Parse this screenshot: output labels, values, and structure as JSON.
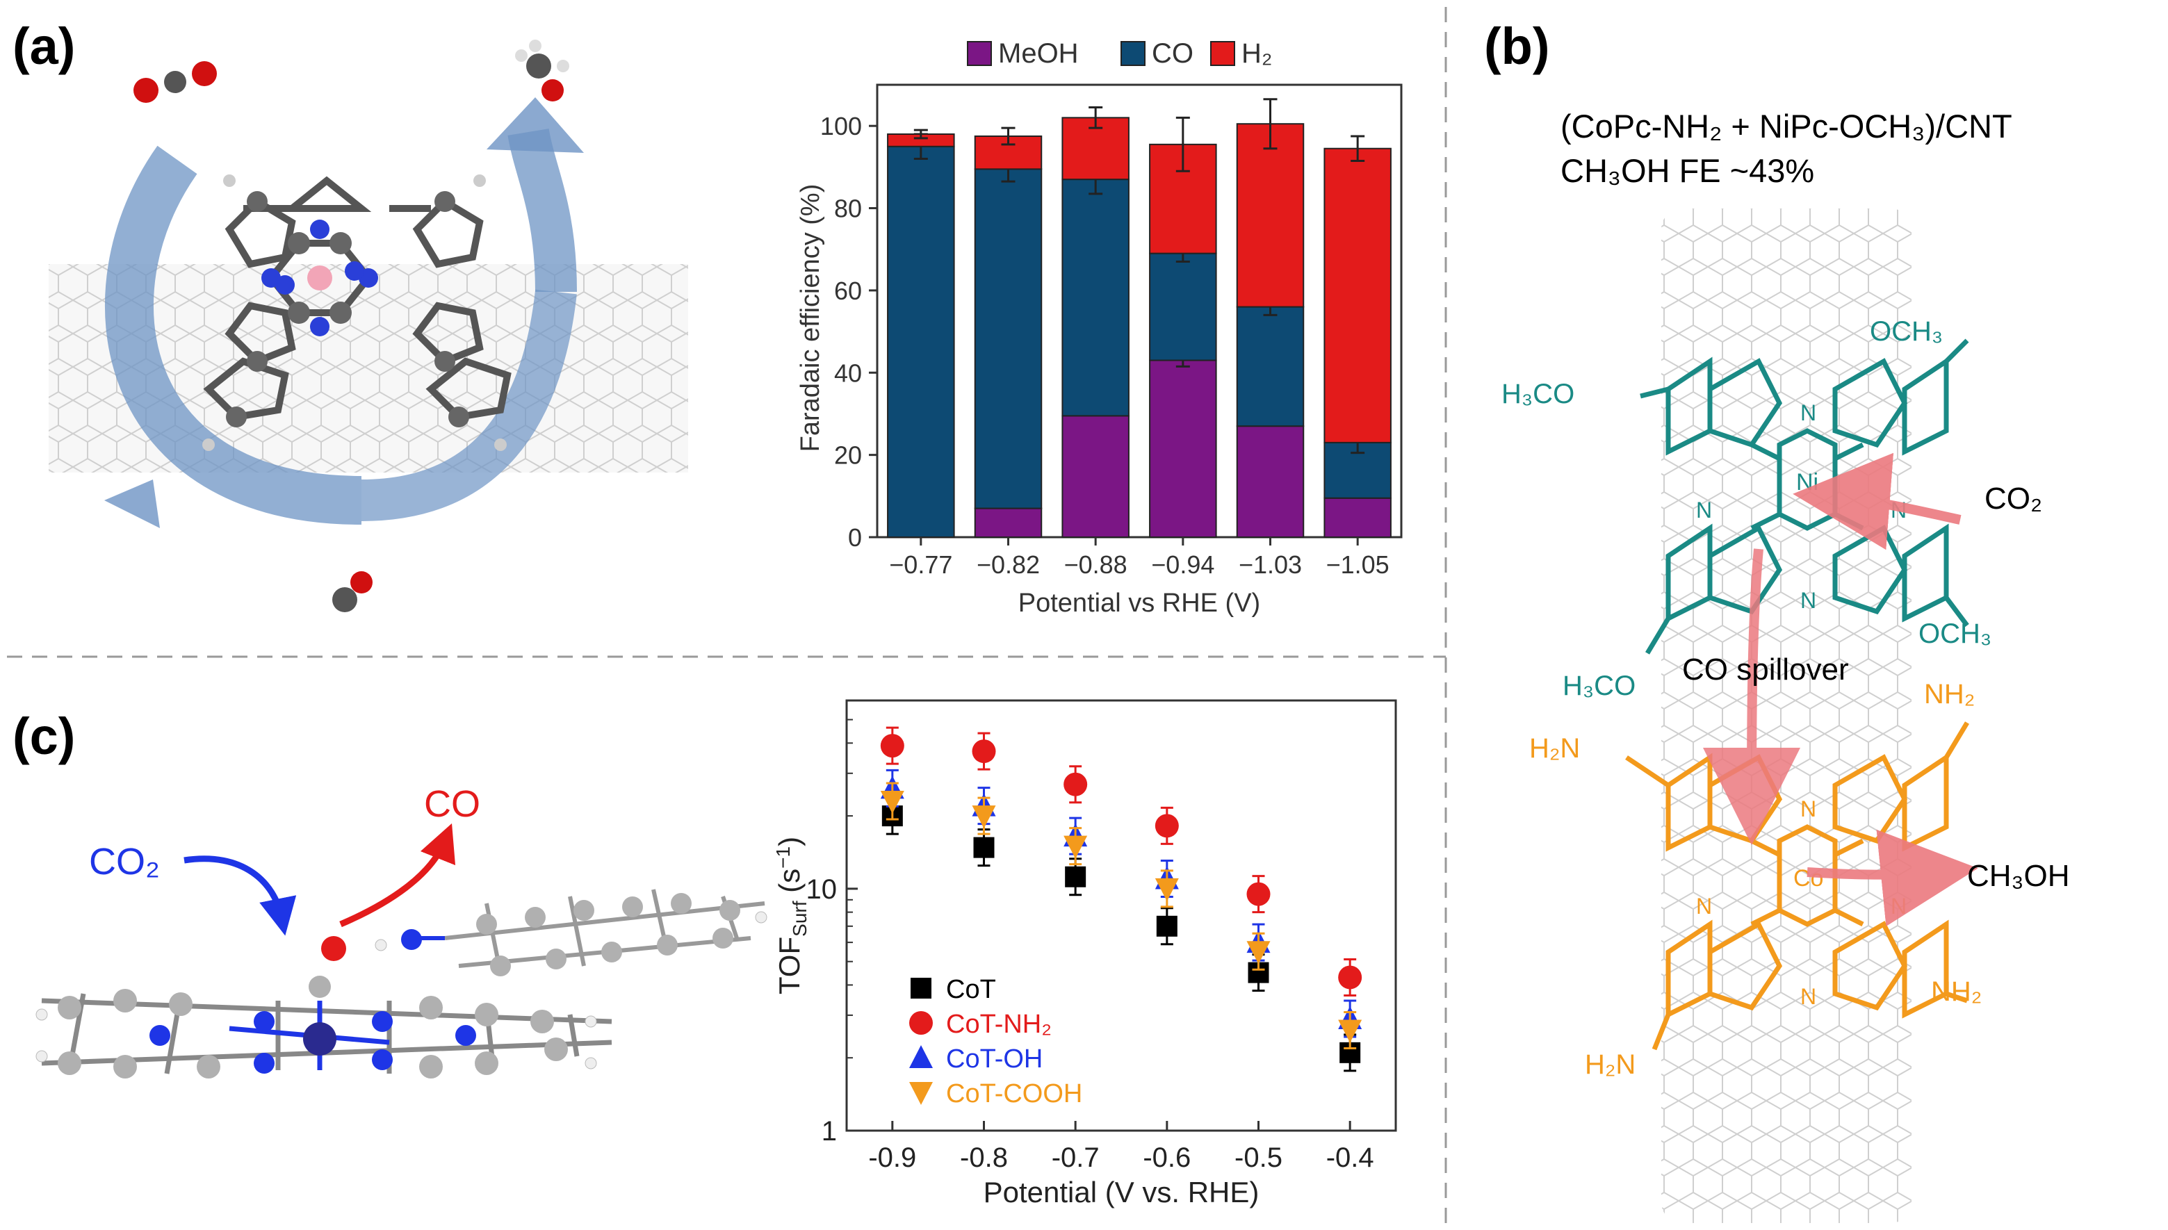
{
  "panels": {
    "a": {
      "label": "(a)",
      "molecule_caption": "Cobalt phthalocyanine on carbon nanotube with CO2 to CO/CH3OH cycle"
    },
    "b": {
      "label": "(b)",
      "title_line1": "(CoPc-NH₂ + NiPc-OCH₃)/CNT",
      "title_line2": "CH₃OH FE ~43%",
      "co2_label": "CO₂",
      "spillover_label": "CO spillover",
      "product_label": "CH₃OH",
      "ni_label": "Ni",
      "co_label": "Co",
      "n_label": "N",
      "och3_tr": "OCH₃",
      "och3_tl": "H₃CO",
      "och3_br": "OCH₃",
      "och3_bl": "H₃CO",
      "nh2_tr": "NH₂",
      "nh2_tl": "H₂N",
      "nh2_br": "NH₂",
      "nh2_bl": "H₂N"
    },
    "c": {
      "label": "(c)",
      "co2_label": "CO₂",
      "co_label": "CO"
    }
  },
  "colors": {
    "meoh": "#7b1685",
    "co": "#0d4a73",
    "h2": "#e31b1b",
    "teal": "#1a8a85",
    "orange": "#f39a1c",
    "arrow_pink": "#ec7a7f",
    "cycle_blue": "#6e94c4",
    "cot": "#000000",
    "cot_nh2": "#e31b1b",
    "cot_oh": "#1e35e6",
    "cot_cooh": "#f39a1c"
  },
  "chart_data": [
    {
      "type": "bar",
      "stacked": true,
      "title": "",
      "xlabel": "Potential vs RHE (V)",
      "ylabel": "Faradaic efficiency (%)",
      "ylim": [
        0,
        110
      ],
      "yticks": [
        0,
        20,
        40,
        60,
        80,
        100
      ],
      "categories": [
        "−0.77",
        "−0.82",
        "−0.88",
        "−0.94",
        "−1.03",
        "−1.05"
      ],
      "legend": [
        "MeOH",
        "CO",
        "H₂"
      ],
      "legend_position": "top",
      "series": [
        {
          "name": "MeOH",
          "values": [
            0,
            7,
            29.5,
            43,
            27,
            9.5
          ],
          "errors": [
            0,
            0,
            0,
            1.5,
            0,
            0
          ]
        },
        {
          "name": "CO",
          "values": [
            95,
            82.5,
            57.5,
            26,
            29,
            13.5
          ],
          "errors": [
            3,
            3,
            3.5,
            2,
            2,
            2.5
          ]
        },
        {
          "name": "H₂",
          "values": [
            3,
            8,
            15,
            26.5,
            44.5,
            71.5
          ],
          "errors": [
            1,
            2,
            2.5,
            6.5,
            6,
            3
          ]
        }
      ]
    },
    {
      "type": "scatter",
      "title": "",
      "xlabel": "Potential (V vs. RHE)",
      "ylabel": "TOF",
      "ylabel_sub": "Surf",
      "ylabel_unit": " (s",
      "ylabel_sup": "−1",
      "ylabel_close": ")",
      "yscale": "log",
      "xlim": [
        -0.95,
        -0.35
      ],
      "ylim": [
        1,
        60
      ],
      "xticks": [
        -0.9,
        -0.8,
        -0.7,
        -0.6,
        -0.5,
        -0.4
      ],
      "xtick_labels": [
        "-0.9",
        "-0.8",
        "-0.7",
        "-0.6",
        "-0.5",
        "-0.4"
      ],
      "yticks": [
        1,
        10
      ],
      "ytick_labels": [
        "1",
        "10"
      ],
      "legend_position": "lower-left",
      "series": [
        {
          "name": "CoT",
          "marker": "square",
          "x": [
            -0.9,
            -0.8,
            -0.7,
            -0.6,
            -0.5,
            -0.4
          ],
          "y": [
            20,
            14.8,
            11.2,
            7,
            4.5,
            2.1
          ]
        },
        {
          "name": "CoT-NH₂",
          "marker": "circle",
          "x": [
            -0.9,
            -0.8,
            -0.7,
            -0.6,
            -0.5,
            -0.4
          ],
          "y": [
            39,
            37,
            27,
            18.2,
            9.5,
            4.3
          ]
        },
        {
          "name": "CoT-OH",
          "marker": "triangle-up",
          "x": [
            -0.9,
            -0.8,
            -0.7,
            -0.6,
            -0.5,
            -0.4
          ],
          "y": [
            26,
            22,
            16.5,
            11,
            6,
            2.9
          ]
        },
        {
          "name": "CoT-COOH",
          "marker": "triangle-down",
          "x": [
            -0.9,
            -0.8,
            -0.7,
            -0.6,
            -0.5,
            -0.4
          ],
          "y": [
            23,
            20,
            15,
            10,
            5.5,
            2.6
          ]
        }
      ]
    }
  ]
}
